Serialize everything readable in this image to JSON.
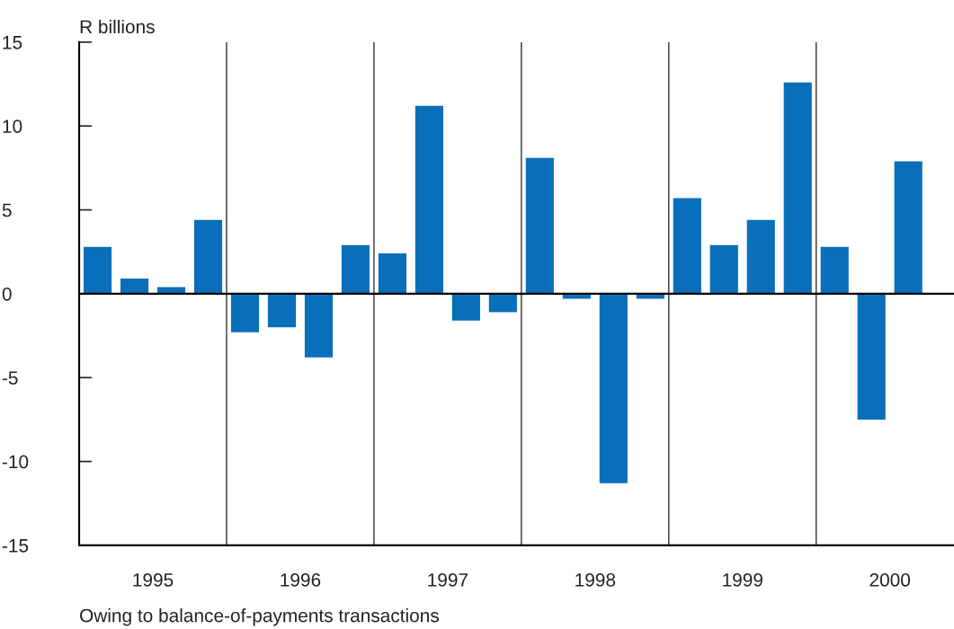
{
  "chart_data": {
    "type": "bar",
    "ylabel": "R billions",
    "color": "#0a6fba",
    "x": [
      1995.125,
      1995.375,
      1995.625,
      1995.875,
      1996.125,
      1996.375,
      1996.625,
      1996.875,
      1997.125,
      1997.375,
      1997.625,
      1997.875,
      1998.125,
      1998.375,
      1998.625,
      1998.875,
      1999.125,
      1999.375,
      1999.625,
      1999.875,
      2000.125,
      2000.375,
      2000.625
    ],
    "values": [
      2.8,
      0.9,
      0.4,
      4.4,
      -2.3,
      -2.0,
      -3.8,
      2.9,
      2.4,
      11.2,
      -1.6,
      -1.1,
      8.1,
      -0.3,
      -11.3,
      -0.3,
      5.7,
      2.9,
      4.4,
      12.6,
      2.8,
      -7.5,
      7.9
    ],
    "xlim": [
      1995,
      2000.935
    ],
    "xticks": [
      {
        "value": 1995.5,
        "label": "1995"
      },
      {
        "value": 1996.5,
        "label": "1996"
      },
      {
        "value": 1997.5,
        "label": "1997"
      },
      {
        "value": 1998.5,
        "label": "1998"
      },
      {
        "value": 1999.5,
        "label": "1999"
      },
      {
        "value": 2000.5,
        "label": "2000"
      }
    ],
    "ylim": [
      -15,
      15
    ],
    "yticks": [
      -15,
      -10,
      -5,
      0,
      5,
      10,
      15
    ],
    "grid": false,
    "legend": false,
    "ref_lines": [
      {
        "axis": "y",
        "value": 0,
        "color": "#000000"
      },
      {
        "axis": "x",
        "value": 1996,
        "color": "#333333"
      },
      {
        "axis": "x",
        "value": 1997,
        "color": "#333333"
      },
      {
        "axis": "x",
        "value": 1998,
        "color": "#333333"
      },
      {
        "axis": "x",
        "value": 1999,
        "color": "#333333"
      },
      {
        "axis": "x",
        "value": 2000,
        "color": "#333333"
      }
    ],
    "annotations": [
      "Owing to balance-of-payments transactions"
    ]
  }
}
